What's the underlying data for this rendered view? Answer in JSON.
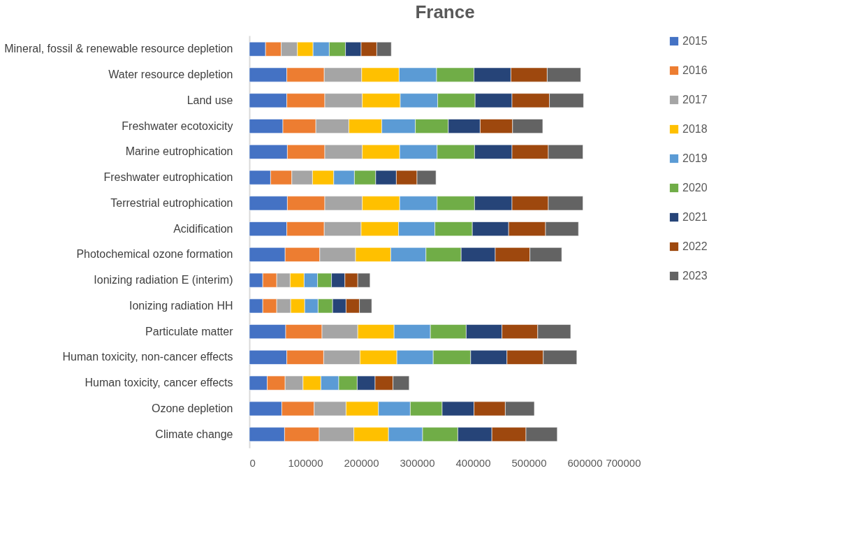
{
  "chart_data": {
    "type": "bar",
    "orientation": "horizontal",
    "stacked": true,
    "title": "France",
    "categories": [
      "Mineral, fossil & renewable resource depletion",
      "Water resource depletion",
      "Land use",
      "Freshwater ecotoxicity",
      "Marine eutrophication",
      "Freshwater eutrophication",
      "Terrestrial eutrophication",
      "Acidification",
      "Photochemical ozone formation",
      "Ionizing radiation E (interim)",
      "Ionizing radiation HH",
      "Particulate matter",
      "Human toxicity, non-cancer effects",
      "Human toxicity, cancer effects",
      "Ozone depletion",
      "Climate change"
    ],
    "series": [
      {
        "name": "2015",
        "color": "#4472c4",
        "values": [
          29000,
          67000,
          67000,
          60000,
          68000,
          38000,
          68000,
          67000,
          64000,
          24000,
          24000,
          65000,
          67000,
          32000,
          58000,
          63000
        ]
      },
      {
        "name": "2016",
        "color": "#ed7d31",
        "values": [
          28000,
          67000,
          68000,
          59000,
          67000,
          38000,
          67000,
          67000,
          62000,
          25000,
          25000,
          65000,
          66000,
          32000,
          58000,
          62000
        ]
      },
      {
        "name": "2017",
        "color": "#a5a5a5",
        "values": [
          29000,
          67000,
          67000,
          59000,
          67000,
          37000,
          67000,
          66000,
          64000,
          24000,
          25000,
          64000,
          65000,
          32000,
          57000,
          62000
        ]
      },
      {
        "name": "2018",
        "color": "#ffc000",
        "values": [
          28000,
          67000,
          68000,
          59000,
          67000,
          38000,
          67000,
          67000,
          63000,
          25000,
          25000,
          65000,
          66000,
          32000,
          58000,
          62000
        ]
      },
      {
        "name": "2019",
        "color": "#5b9bd5",
        "values": [
          29000,
          67000,
          67000,
          60000,
          67000,
          37000,
          67000,
          65000,
          63000,
          24000,
          24000,
          65000,
          65000,
          32000,
          57000,
          61000
        ]
      },
      {
        "name": "2020",
        "color": "#70ad47",
        "values": [
          29000,
          67000,
          67000,
          59000,
          67000,
          38000,
          67000,
          67000,
          63000,
          25000,
          26000,
          64000,
          67000,
          33000,
          57000,
          63000
        ]
      },
      {
        "name": "2021",
        "color": "#264478",
        "values": [
          28000,
          66000,
          66000,
          57000,
          67000,
          37000,
          67000,
          65000,
          61000,
          24000,
          24000,
          64000,
          65000,
          32000,
          57000,
          61000
        ]
      },
      {
        "name": "2022",
        "color": "#9e480e",
        "values": [
          28000,
          65000,
          67000,
          58000,
          65000,
          37000,
          65000,
          66000,
          62000,
          23000,
          24000,
          64000,
          65000,
          32000,
          56000,
          61000
        ]
      },
      {
        "name": "2023",
        "color": "#636363",
        "values": [
          26000,
          60000,
          61000,
          54000,
          62000,
          34000,
          62000,
          59000,
          57000,
          22000,
          22000,
          59000,
          60000,
          29000,
          52000,
          56000
        ]
      }
    ],
    "xlim": [
      0,
      700000
    ],
    "xticks": [
      0,
      100000,
      200000,
      300000,
      400000,
      500000,
      600000,
      700000
    ],
    "grid": false,
    "legend": "right"
  }
}
